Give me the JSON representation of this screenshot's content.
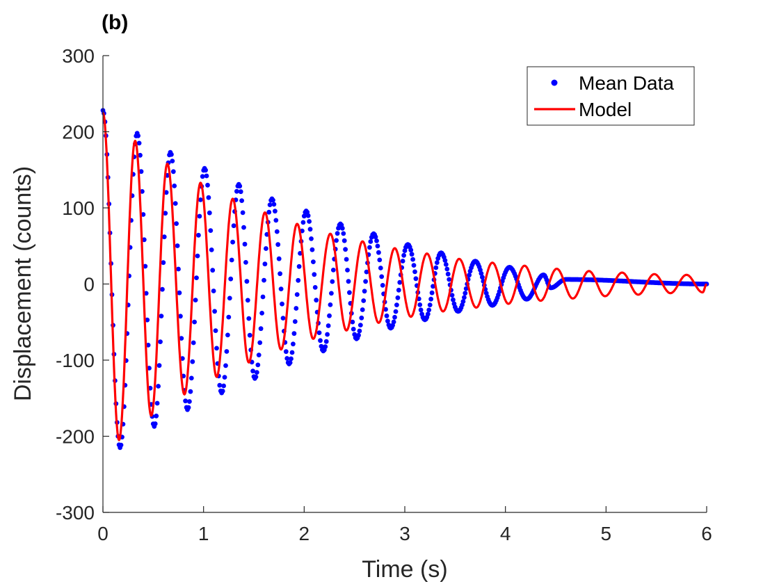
{
  "chart_data": {
    "type": "scatter",
    "panel_label": "(b)",
    "xlabel": "Time (s)",
    "ylabel": "Displacement (counts)",
    "xlim": [
      0,
      6
    ],
    "ylim": [
      -300,
      300
    ],
    "xticks": [
      "0",
      "1",
      "2",
      "3",
      "4",
      "5",
      "6"
    ],
    "yticks": [
      "-300",
      "-200",
      "-100",
      "0",
      "100",
      "200",
      "300"
    ],
    "grid": false,
    "legend": {
      "position": "top-right",
      "entries": [
        {
          "label": "Mean Data",
          "marker": "dot",
          "color": "#0000ff"
        },
        {
          "label": "Model",
          "marker": "line",
          "color": "#ff0000"
        }
      ]
    },
    "series": [
      {
        "name": "Mean Data",
        "kind": "points",
        "color": "#0000ff",
        "decay_profile": {
          "description": "damped oscillation, period ~0.335 s, ends near 4.45 s then flat at ~0",
          "peaks": [
            {
              "t": 0.0,
              "y": 228
            },
            {
              "t": 0.17,
              "y": -215
            },
            {
              "t": 0.34,
              "y": 198
            },
            {
              "t": 0.51,
              "y": -187
            },
            {
              "t": 0.67,
              "y": 173
            },
            {
              "t": 0.84,
              "y": -165
            },
            {
              "t": 1.01,
              "y": 152
            },
            {
              "t": 1.18,
              "y": -143
            },
            {
              "t": 1.35,
              "y": 131
            },
            {
              "t": 1.51,
              "y": -124
            },
            {
              "t": 1.68,
              "y": 112
            },
            {
              "t": 1.85,
              "y": -105
            },
            {
              "t": 2.02,
              "y": 96
            },
            {
              "t": 2.19,
              "y": -88
            },
            {
              "t": 2.36,
              "y": 79
            },
            {
              "t": 2.52,
              "y": -72
            },
            {
              "t": 2.69,
              "y": 66
            },
            {
              "t": 2.86,
              "y": -58
            },
            {
              "t": 3.03,
              "y": 52
            },
            {
              "t": 3.2,
              "y": -47
            },
            {
              "t": 3.36,
              "y": 41
            },
            {
              "t": 3.53,
              "y": -36
            },
            {
              "t": 3.7,
              "y": 30
            },
            {
              "t": 3.87,
              "y": -28
            },
            {
              "t": 4.04,
              "y": 22
            },
            {
              "t": 4.21,
              "y": -20
            },
            {
              "t": 4.38,
              "y": 12
            },
            {
              "t": 4.45,
              "y": -5
            },
            {
              "t": 4.6,
              "y": 6
            },
            {
              "t": 6.0,
              "y": 0
            }
          ]
        }
      },
      {
        "name": "Model",
        "kind": "line",
        "color": "#ff0000",
        "peaks": [
          {
            "t": 0.0,
            "y": 225
          },
          {
            "t": 0.16,
            "y": -205
          },
          {
            "t": 0.32,
            "y": 188
          },
          {
            "t": 0.48,
            "y": -173
          },
          {
            "t": 0.64,
            "y": 158
          },
          {
            "t": 0.81,
            "y": -145
          },
          {
            "t": 0.97,
            "y": 133
          },
          {
            "t": 1.13,
            "y": -122
          },
          {
            "t": 1.29,
            "y": 112
          },
          {
            "t": 1.45,
            "y": -103
          },
          {
            "t": 1.61,
            "y": 94
          },
          {
            "t": 1.77,
            "y": -86
          },
          {
            "t": 1.93,
            "y": 79
          },
          {
            "t": 2.09,
            "y": -72
          },
          {
            "t": 2.26,
            "y": 66
          },
          {
            "t": 2.42,
            "y": -61
          },
          {
            "t": 2.58,
            "y": 56
          },
          {
            "t": 2.74,
            "y": -51
          },
          {
            "t": 2.9,
            "y": 47
          },
          {
            "t": 3.06,
            "y": -43
          },
          {
            "t": 3.22,
            "y": 40
          },
          {
            "t": 3.38,
            "y": -36
          },
          {
            "t": 3.54,
            "y": 33
          },
          {
            "t": 3.71,
            "y": -31
          },
          {
            "t": 3.87,
            "y": 28
          },
          {
            "t": 4.03,
            "y": -26
          },
          {
            "t": 4.19,
            "y": 24
          },
          {
            "t": 4.35,
            "y": -22
          },
          {
            "t": 4.51,
            "y": 20
          },
          {
            "t": 4.67,
            "y": -19
          },
          {
            "t": 4.83,
            "y": 17
          },
          {
            "t": 4.99,
            "y": -16
          },
          {
            "t": 5.16,
            "y": 15
          },
          {
            "t": 5.32,
            "y": -14
          },
          {
            "t": 5.48,
            "y": 13
          },
          {
            "t": 5.64,
            "y": -12
          },
          {
            "t": 5.8,
            "y": 12
          },
          {
            "t": 5.96,
            "y": -11
          },
          {
            "t": 6.0,
            "y": 0
          }
        ]
      }
    ]
  }
}
